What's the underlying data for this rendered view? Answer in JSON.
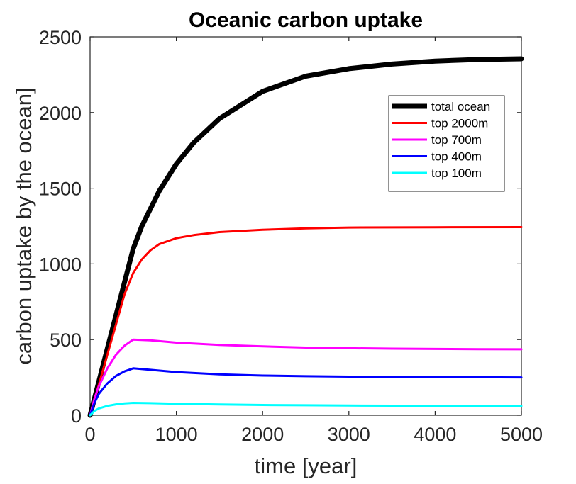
{
  "chart_data": {
    "type": "line",
    "title": "Oceanic carbon uptake",
    "xlabel": "time [year]",
    "ylabel": "carbon uptake by the ocean]",
    "xlim": [
      0,
      5000
    ],
    "ylim": [
      0,
      2500
    ],
    "xticks": [
      0,
      1000,
      2000,
      3000,
      4000,
      5000
    ],
    "yticks": [
      0,
      500,
      1000,
      1500,
      2000,
      2500
    ],
    "grid": false,
    "legend_position": "top-right",
    "series": [
      {
        "name": "total ocean",
        "color": "#000000",
        "x": [
          0,
          100,
          200,
          300,
          400,
          500,
          600,
          800,
          1000,
          1200,
          1500,
          2000,
          2500,
          3000,
          3500,
          4000,
          4500,
          5000
        ],
        "values": [
          0,
          220,
          440,
          660,
          880,
          1100,
          1250,
          1480,
          1660,
          1800,
          1960,
          2140,
          2240,
          2290,
          2320,
          2340,
          2350,
          2355
        ]
      },
      {
        "name": "top 2000m",
        "color": "#ff0000",
        "x": [
          0,
          100,
          200,
          300,
          400,
          500,
          600,
          700,
          800,
          1000,
          1200,
          1500,
          2000,
          2500,
          3000,
          4000,
          5000
        ],
        "values": [
          0,
          200,
          400,
          600,
          800,
          940,
          1030,
          1090,
          1130,
          1170,
          1190,
          1210,
          1225,
          1235,
          1240,
          1242,
          1243
        ]
      },
      {
        "name": "top 700m",
        "color": "#ff00ff",
        "x": [
          0,
          50,
          100,
          200,
          300,
          400,
          500,
          700,
          1000,
          1500,
          2000,
          2500,
          3000,
          3500,
          4000,
          4500,
          5000
        ],
        "values": [
          0,
          110,
          190,
          310,
          400,
          460,
          500,
          495,
          480,
          465,
          455,
          447,
          443,
          440,
          438,
          437,
          436
        ]
      },
      {
        "name": "top 400m",
        "color": "#0000ff",
        "x": [
          0,
          50,
          100,
          200,
          300,
          400,
          500,
          700,
          1000,
          1500,
          2000,
          2500,
          3000,
          3500,
          4000,
          4500,
          5000
        ],
        "values": [
          0,
          80,
          140,
          210,
          260,
          290,
          310,
          300,
          285,
          270,
          262,
          258,
          255,
          253,
          252,
          251,
          250
        ]
      },
      {
        "name": "top 100m",
        "color": "#00ffff",
        "x": [
          0,
          50,
          100,
          200,
          300,
          400,
          500,
          700,
          1000,
          1500,
          2000,
          2500,
          3000,
          3500,
          4000,
          4500,
          5000
        ],
        "values": [
          0,
          28,
          45,
          62,
          72,
          78,
          82,
          80,
          76,
          71,
          68,
          66,
          64,
          63,
          62,
          62,
          61
        ]
      }
    ]
  }
}
